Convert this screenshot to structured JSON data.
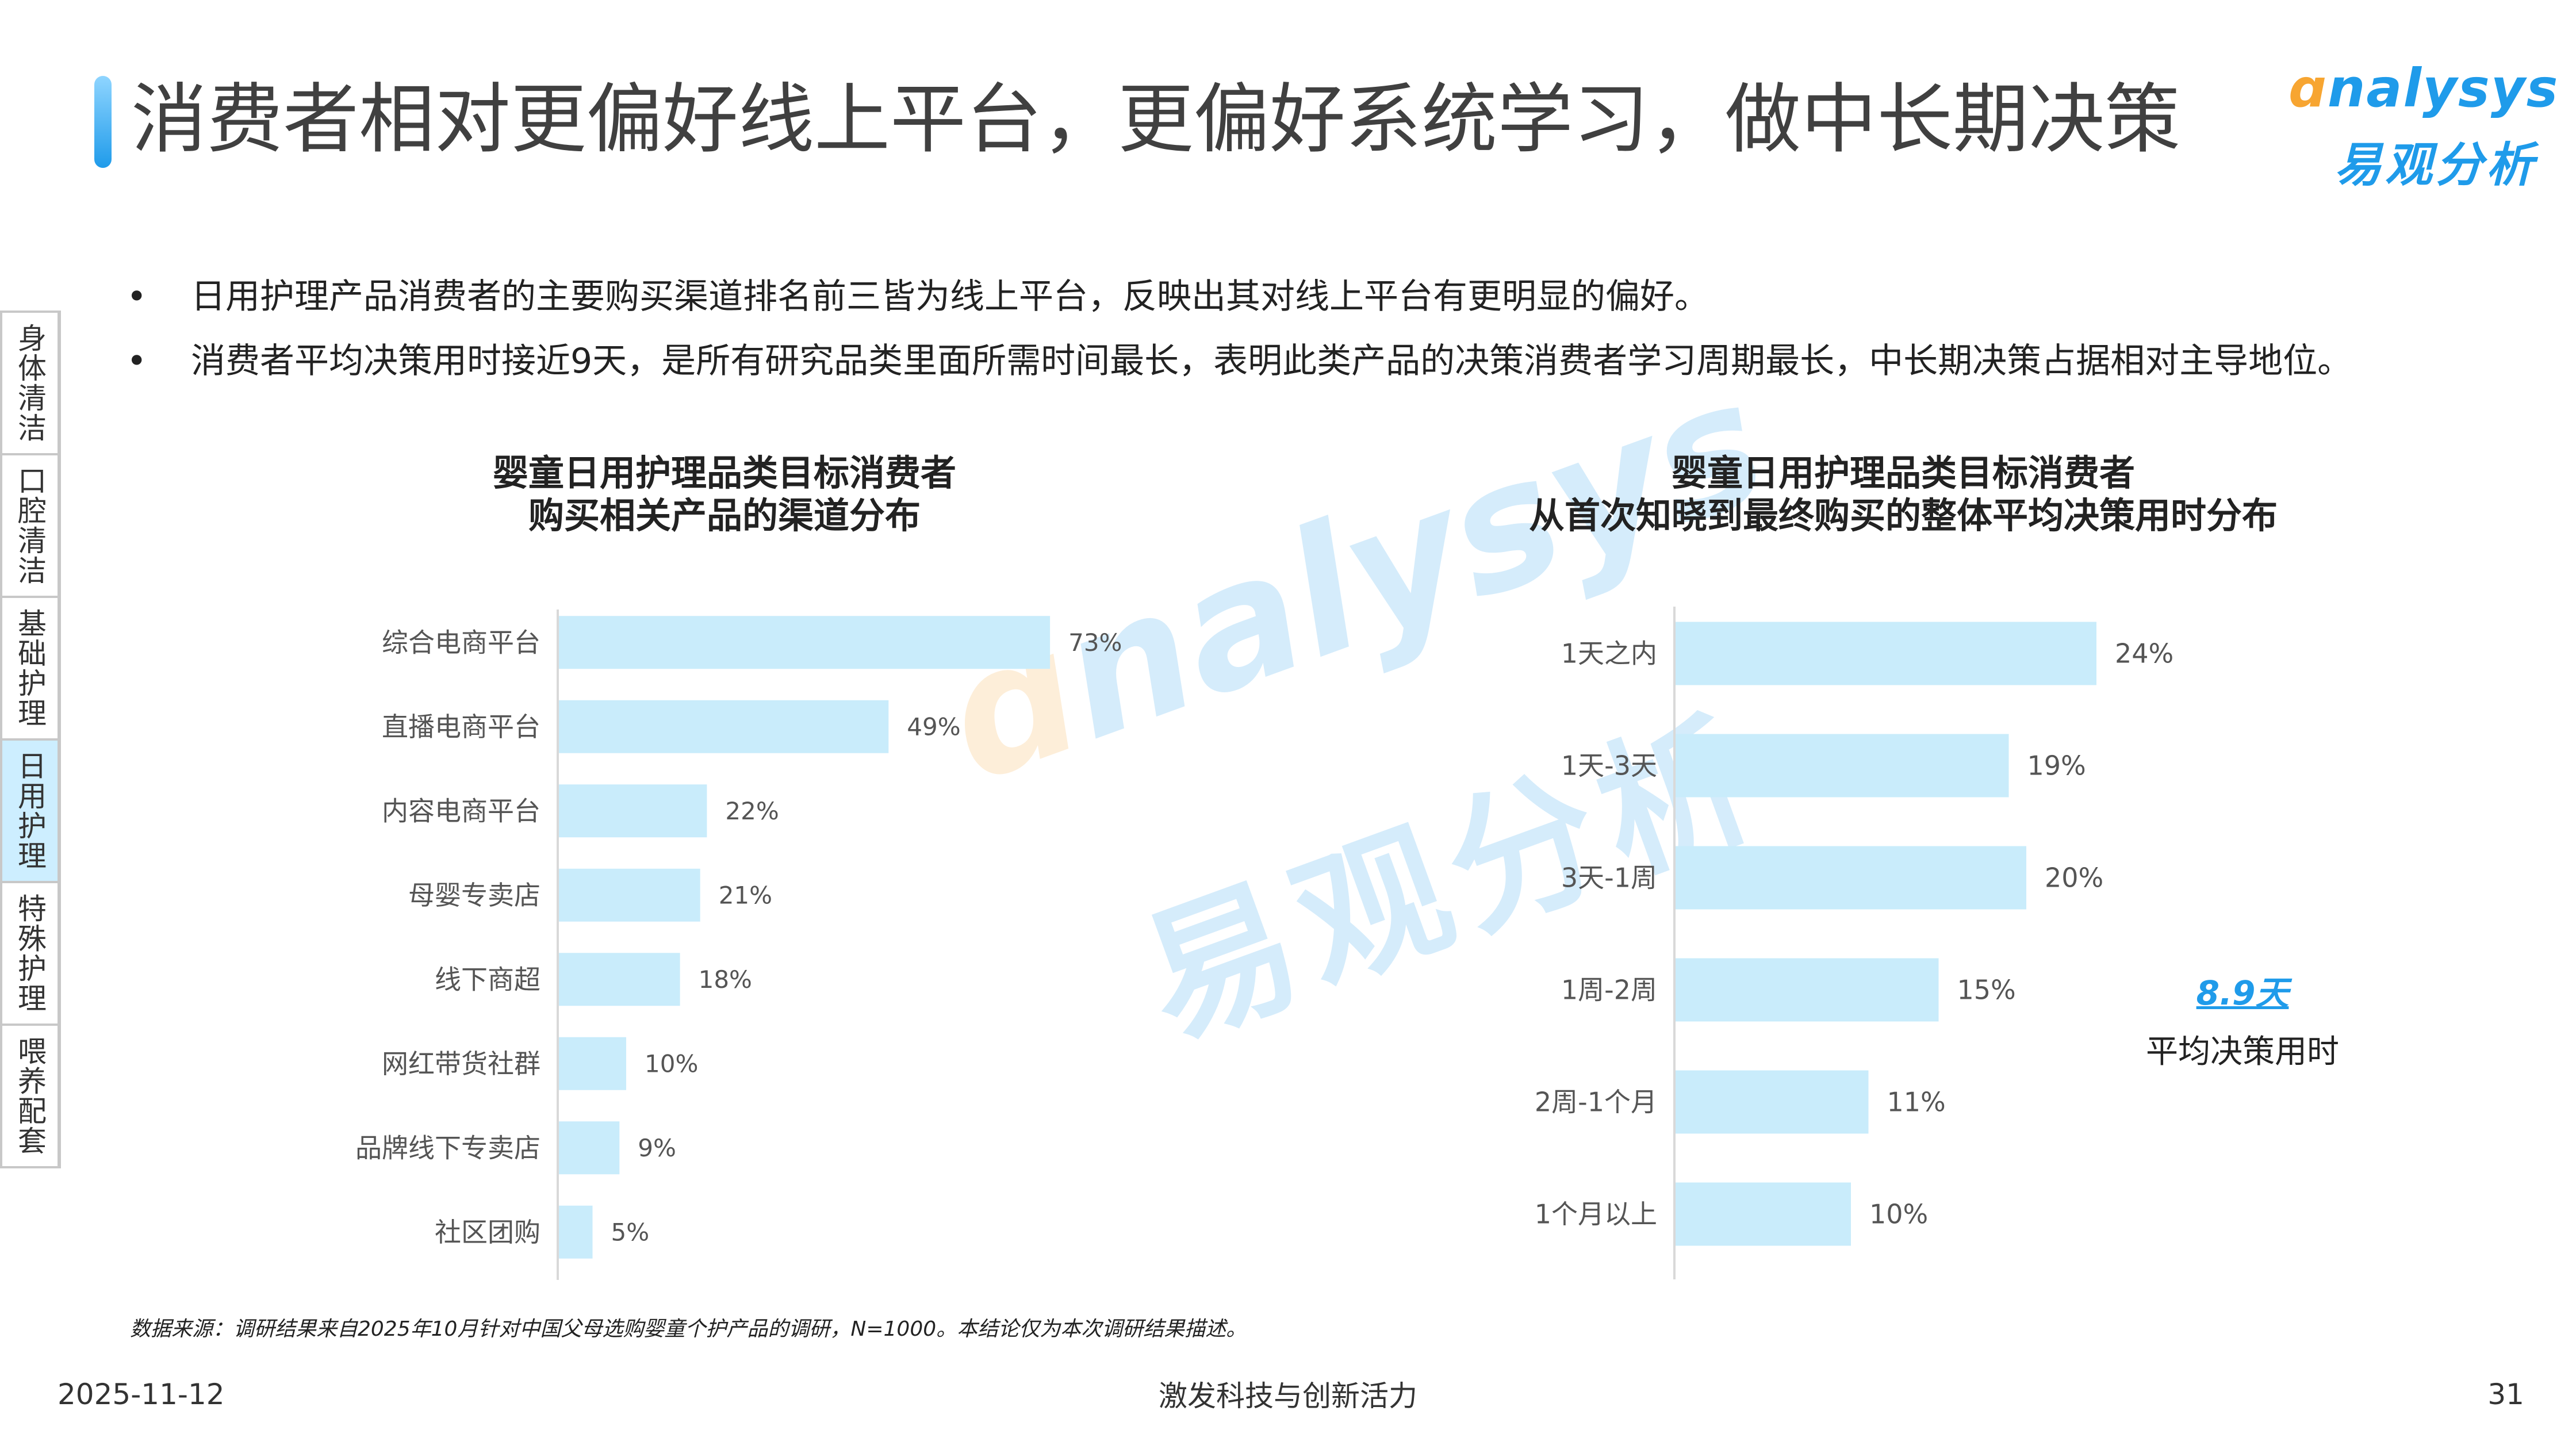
{
  "title": "消费者相对更偏好线上平台，更偏好系统学习，做中长期决策",
  "logo": {
    "en_mark": "ɑ",
    "en_text": "nalysys",
    "cn": "易观分析"
  },
  "sidenav": {
    "items": [
      {
        "label": "身体清洁",
        "active": false
      },
      {
        "label": "口腔清洁",
        "active": false
      },
      {
        "label": "基础护理",
        "active": false
      },
      {
        "label": "日用护理",
        "active": true
      },
      {
        "label": "特殊护理",
        "active": false
      },
      {
        "label": "喂养配套",
        "active": false
      }
    ]
  },
  "bullets": [
    "日用护理产品消费者的主要购买渠道排名前三皆为线上平台，反映出其对线上平台有更明显的偏好。",
    "消费者平均决策用时接近9天，是所有研究品类里面所需时间最长，表明此类产品的决策消费者学习周期最长，中长期决策占据相对主导地位。"
  ],
  "chart_data": [
    {
      "type": "bar",
      "orientation": "horizontal",
      "title_lines": [
        "婴童日用护理品类目标消费者",
        "购买相关产品的渠道分布"
      ],
      "categories": [
        "综合电商平台",
        "直播电商平台",
        "内容电商平台",
        "母婴专卖店",
        "线下商超",
        "网红带货社群",
        "品牌线下专卖店",
        "社区团购"
      ],
      "values": [
        73,
        49,
        22,
        21,
        18,
        10,
        9,
        5
      ],
      "labels": [
        "73%",
        "49%",
        "22%",
        "21%",
        "18%",
        "10%",
        "9%",
        "5%"
      ],
      "xlim": [
        0,
        100
      ],
      "color": "#c9ecfb",
      "grid": false
    },
    {
      "type": "bar",
      "orientation": "horizontal",
      "title_lines": [
        "婴童日用护理品类目标消费者",
        "从首次知晓到最终购买的整体平均决策用时分布"
      ],
      "categories": [
        "1天之内",
        "1天-3天",
        "3天-1周",
        "1周-2周",
        "2周-1个月",
        "1个月以上"
      ],
      "values": [
        24,
        19,
        20,
        15,
        11,
        10
      ],
      "labels": [
        "24%",
        "19%",
        "20%",
        "15%",
        "11%",
        "10%"
      ],
      "xlim": [
        0,
        55
      ],
      "color": "#c9ecfb",
      "grid": false
    }
  ],
  "avg_decision": {
    "value": "8.9天",
    "label": "平均决策用时"
  },
  "source": "数据来源：调研结果来自2025年10月针对中国父母选购婴童个护产品的调研，N=1000。本结论仅为本次调研结果描述。",
  "footer": {
    "date": "2025-11-12",
    "center": "激发科技与创新活力",
    "page": "31"
  },
  "watermark": {
    "en_mark": "ɑ",
    "en_text": "nalysys",
    "cn": "易观分析"
  },
  "colors": {
    "accent": "#1f9bea",
    "orange": "#f7a531",
    "bar": "#c9ecfb"
  }
}
